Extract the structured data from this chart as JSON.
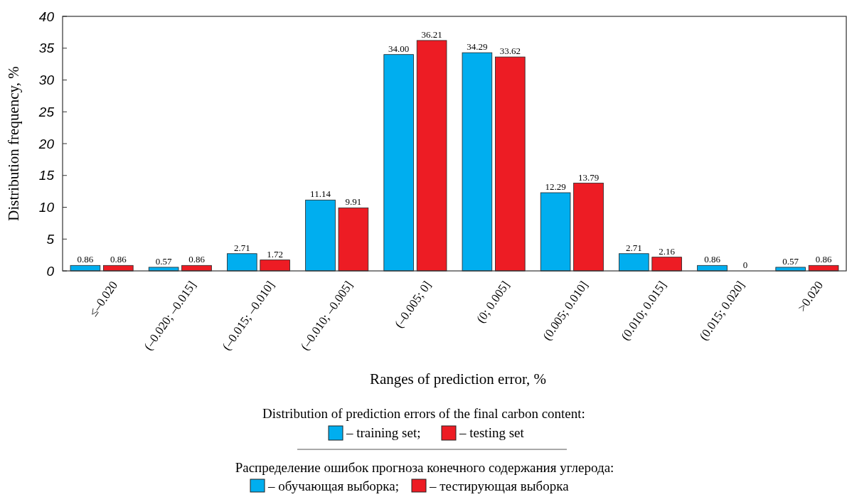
{
  "chart_data": {
    "type": "bar",
    "xlabel": "Ranges of prediction error, %",
    "ylabel": "Distribution frequency, %",
    "categories": [
      "≤–0.020",
      "(–0.020; –0.015]",
      "(–0.015; –0.010]",
      "(–0.010; –0.005]",
      "(–0.005; 0]",
      "(0; 0.005]",
      "(0.005; 0.010]",
      "(0.010; 0.015]",
      "(0.015; 0.020]",
      ">0.020"
    ],
    "series": [
      {
        "name": "– training set;",
        "color": "#00aeef",
        "values": [
          0.86,
          0.57,
          2.71,
          11.14,
          34.0,
          34.29,
          12.29,
          2.71,
          0.86,
          0.57
        ],
        "value_labels": [
          "0.86",
          "0.57",
          "2.71",
          "11.14",
          "34.00",
          "34.29",
          "12.29",
          "2.71",
          "0.86",
          "0.57"
        ]
      },
      {
        "name": "– testing set",
        "color": "#ed1c24",
        "values": [
          0.86,
          0.86,
          1.72,
          9.91,
          36.21,
          33.62,
          13.79,
          2.16,
          0,
          0.86
        ],
        "value_labels": [
          "0.86",
          "0.86",
          "1.72",
          "9.91",
          "36.21",
          "33.62",
          "13.79",
          "2.16",
          "0",
          "0.86"
        ]
      }
    ],
    "ylim": [
      0,
      40
    ],
    "yticks": [
      0,
      5,
      10,
      15,
      20,
      25,
      30,
      35,
      40
    ],
    "grid": false,
    "legend": "bottom",
    "annotations": [
      "Distribution of prediction errors of the final carbon content:",
      "Распределение ошибок прогноза конечного содержания углерода:",
      "– обучающая выборка;",
      "– тестирующая выборка"
    ]
  }
}
